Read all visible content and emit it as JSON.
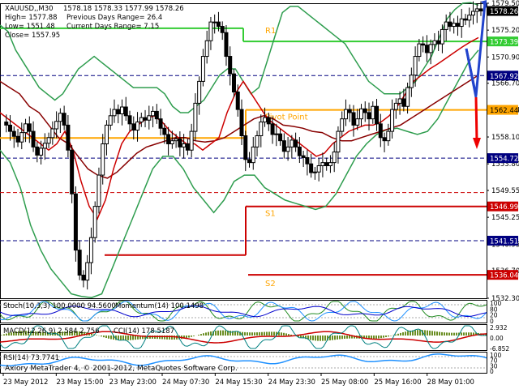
{
  "header": {
    "symbol": "XAUUSD,,M30",
    "ohlc": "1578.18 1578.33 1577.99 1578.26",
    "high": "High= 1577.88",
    "low": "Low= 1551.48",
    "close": "Close= 1557.95",
    "prev_range": "Previous Days Range= 26.4",
    "cur_range": "Current Days Range= 7.15"
  },
  "indicator_labels": {
    "stoch": "Stoch(10,3,3) 100.0000 94.5600",
    "momentum": "Momentum(14) 100.1498",
    "macd": "MACD(12,26,9) 2.584 2.756",
    "cci": "CCI(14) 178.5187",
    "rsi": "RSI(14) 73.7741"
  },
  "copyright": "Axiory MetaTrader 4, © 2001-2012, MetaQuotes Software Corp.",
  "pivot_labels": {
    "r1": "R1",
    "pivot": "Pivot Point",
    "s1": "S1",
    "s2": "S2"
  },
  "colors": {
    "candle": "#000000",
    "bollinger": "#2e9d4e",
    "pivot": "#ffa500",
    "r1": "#33cc33",
    "support": "#cc0000",
    "ma_fast": "#cc0000",
    "ma_slow": "#880000",
    "arrow_up": "#2244cc",
    "arrow_down": "#ee0000",
    "stoch_main": "#228b22",
    "stoch_signal": "#1e90ff",
    "momentum": "#0000cc",
    "macd_hist": "#6b8e23",
    "macd_signal": "#cc0000",
    "cci": "#008080",
    "rsi": "#1e90ff"
  },
  "chart_data": {
    "type": "candlestick",
    "ylim": [
      1532.3,
      1579.5
    ],
    "y_ticks": [
      "1579.50",
      "1575.20",
      "1570.90",
      "1566.70",
      "1562.44",
      "1558.10",
      "1553.80",
      "1549.55",
      "1545.25",
      "1540.95",
      "1536.70",
      "1532.30"
    ],
    "x_labels": [
      "23 May 2012",
      "23 May 15:00",
      "23 May 23:00",
      "24 May 07:30",
      "24 May 15:30",
      "24 May 23:30",
      "25 May 08:00",
      "25 May 16:00",
      "28 May 01:00"
    ],
    "close_series": [
      1560.5,
      1560.0,
      1559.0,
      1558.2,
      1557.3,
      1558.8,
      1560.2,
      1559.0,
      1556.5,
      1555.2,
      1556.3,
      1557.1,
      1558.0,
      1559.4,
      1560.6,
      1561.9,
      1560.0,
      1556.0,
      1549.0,
      1540.0,
      1536.0,
      1535.2,
      1538.0,
      1542.0,
      1547.0,
      1552.0,
      1557.0,
      1560.0,
      1561.5,
      1562.5,
      1561.8,
      1562.9,
      1561.5,
      1560.2,
      1559.2,
      1560.5,
      1561.2,
      1560.8,
      1561.5,
      1562.2,
      1561.0,
      1559.5,
      1558.5,
      1557.0,
      1557.5,
      1557.8,
      1556.5,
      1557.0,
      1556.0,
      1559.0,
      1563.5,
      1567.0,
      1571.0,
      1573.5,
      1576.5,
      1576.5,
      1575.8,
      1574.8,
      1571.0,
      1568.2,
      1565.3,
      1562.5,
      1558.3,
      1554.5,
      1554.0,
      1556.5,
      1558.3,
      1560.5,
      1561.2,
      1560.2,
      1558.5,
      1558.6,
      1557.5,
      1555.8,
      1556.5,
      1557.6,
      1556.5,
      1555.1,
      1554.8,
      1553.8,
      1552.4,
      1552.5,
      1553.5,
      1554.0,
      1553.5,
      1554.0,
      1555.7,
      1559.0,
      1561.0,
      1562.5,
      1562.0,
      1560.0,
      1561.0,
      1562.6,
      1562.0,
      1561.0,
      1563.0,
      1560.2,
      1558.0,
      1557.5,
      1559.0,
      1562.5,
      1563.5,
      1564.2,
      1563.0,
      1566.0,
      1568.0,
      1571.0,
      1573.0,
      1572.8,
      1571.6,
      1572.9,
      1573.5,
      1573.0,
      1575.3,
      1576.5,
      1575.8,
      1576.3,
      1575.8,
      1577.0,
      1576.8,
      1577.6,
      1578.2,
      1578.6,
      1578.26
    ],
    "bollinger_upper": [
      1576,
      1575,
      1572,
      1570,
      1568,
      1566,
      1565,
      1564,
      1565,
      1567,
      1569,
      1570,
      1571,
      1570,
      1569,
      1568,
      1567,
      1566,
      1566,
      1566,
      1566,
      1565,
      1563,
      1562,
      1562,
      1563,
      1564,
      1566,
      1568,
      1569,
      1569,
      1567,
      1565,
      1566,
      1570,
      1574,
      1578,
      1579,
      1579,
      1578,
      1577,
      1576,
      1575,
      1574,
      1573,
      1571,
      1569,
      1567,
      1566,
      1565,
      1565,
      1565,
      1566,
      1567,
      1569,
      1571,
      1574,
      1577,
      1578.5,
      1579.5,
      1579.6,
      1579.2
    ],
    "bollinger_lower": [
      1556,
      1554,
      1550,
      1544,
      1540,
      1537,
      1535,
      1533,
      1532.6,
      1532.4,
      1533,
      1537,
      1541,
      1545,
      1549,
      1553,
      1555,
      1555,
      1553,
      1550,
      1548,
      1546,
      1548,
      1551,
      1552,
      1552,
      1550,
      1549,
      1548,
      1547.5,
      1547,
      1546.5,
      1547,
      1549,
      1552,
      1555,
      1557,
      1558.5,
      1559.3,
      1559.5,
      1559,
      1558.5,
      1559,
      1561,
      1564,
      1567,
      1570,
      1572
    ],
    "ma_fast": [
      1562,
      1561,
      1560,
      1559,
      1558,
      1557,
      1556,
      1557,
      1559,
      1556,
      1551,
      1547,
      1545,
      1548,
      1553,
      1557,
      1559,
      1560,
      1561,
      1561.5,
      1560.5,
      1559,
      1558,
      1557,
      1557,
      1556,
      1557,
      1558,
      1562,
      1565,
      1567,
      1565,
      1563,
      1561,
      1560,
      1559,
      1558,
      1557,
      1556,
      1555,
      1555.5,
      1557,
      1558,
      1559,
      1559.5,
      1560,
      1560,
      1560.5,
      1561.5,
      1563,
      1565,
      1567,
      1568,
      1569,
      1569.8,
      1570.7,
      1571.6,
      1572.5,
      1573.3,
      1574
    ],
    "ma_slow": [
      1567,
      1566,
      1565,
      1563,
      1562,
      1560,
      1558,
      1557,
      1555,
      1553,
      1552,
      1551.5,
      1552.5,
      1554,
      1555.5,
      1556.5,
      1557,
      1557.5,
      1558,
      1558,
      1557.5,
      1557.3,
      1557.5,
      1558,
      1559,
      1560,
      1561,
      1561.5,
      1561,
      1560,
      1559.8,
      1559.5,
      1559,
      1558.8,
      1558,
      1557.5,
      1557.5,
      1558,
      1558.5,
      1559,
      1559.5,
      1560,
      1561,
      1562,
      1563,
      1564,
      1565,
      1566,
      1567,
      1568
    ],
    "pivot_segments": [
      {
        "name": "Pivot",
        "level": 1557.95,
        "from": 0.0,
        "to": 0.215
      },
      {
        "name": "Pivot",
        "level": 1557.95,
        "from": 0.215,
        "to": 0.505
      },
      {
        "name": "Pivot",
        "level": 1562.44,
        "from": 0.51,
        "to": 1.0
      },
      {
        "name": "R1",
        "level": 1575.5,
        "from": 0.0,
        "to": 0.5
      },
      {
        "name": "R1",
        "level": 1573.39,
        "from": 0.5,
        "to": 1.0
      },
      {
        "name": "S1",
        "level": 1539.2,
        "from": 0.215,
        "to": 0.505
      },
      {
        "name": "S1",
        "level": 1546.99,
        "from": 0.51,
        "to": 1.0
      },
      {
        "name": "S2",
        "level": 1536.04,
        "from": 0.51,
        "to": 1.0
      }
    ],
    "dashed_levels": [
      {
        "level": 1567.92,
        "color": "#000080"
      },
      {
        "level": 1554.72,
        "color": "#000080"
      },
      {
        "level": 1549.2,
        "color": "#cc0000"
      },
      {
        "level": 1541.51,
        "color": "#000080"
      }
    ],
    "right_labels": [
      {
        "text": "1578.26",
        "level": 1578.26,
        "bg": "#000000",
        "fg": "#ffffff"
      },
      {
        "text": "1573.39",
        "level": 1573.39,
        "bg": "#33cc33",
        "fg": "#ffffff"
      },
      {
        "text": "1567.92",
        "level": 1567.92,
        "bg": "#000080",
        "fg": "#ffffff"
      },
      {
        "text": "1562.44",
        "level": 1562.44,
        "bg": "#ffa500",
        "fg": "#000000"
      },
      {
        "text": "1554.72",
        "level": 1554.72,
        "bg": "#000080",
        "fg": "#ffffff"
      },
      {
        "text": "1546.99",
        "level": 1546.99,
        "bg": "#cc0000",
        "fg": "#ffffff"
      },
      {
        "text": "1541.51",
        "level": 1541.51,
        "bg": "#000080",
        "fg": "#ffffff"
      },
      {
        "text": "1536.04",
        "level": 1536.04,
        "bg": "#cc0000",
        "fg": "#ffffff"
      }
    ],
    "stoch_ticks": [
      "100",
      "80",
      "20",
      "0"
    ],
    "macd_ticks": [
      "2.932",
      "0.00",
      "-6.852"
    ],
    "rsi_ticks": [
      "100",
      "70",
      "30",
      "0"
    ]
  }
}
